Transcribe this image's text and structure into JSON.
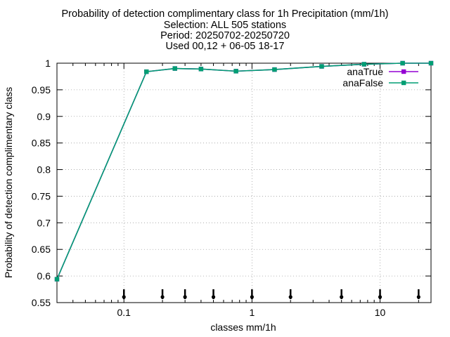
{
  "chart_data": {
    "type": "line",
    "title_lines": [
      "Probability of detection complimentary class  for 1h Precipitation (mm/1h)",
      "Selection: ALL    505 stations",
      "Period: 20250702-20250720",
      "Used 00,12 + 06-05 18-17"
    ],
    "xlabel": "classes mm/1h",
    "ylabel": "Probability of detection complimentary class",
    "xscale": "log",
    "xlim": [
      0.03,
      25
    ],
    "ylim": [
      0.55,
      1.0
    ],
    "yticks": [
      0.55,
      0.6,
      0.65,
      0.7,
      0.75,
      0.8,
      0.85,
      0.9,
      0.95,
      1.0
    ],
    "ytick_labels": [
      "0.55",
      "0.6",
      "0.65",
      "0.7",
      "0.75",
      "0.8",
      "0.85",
      "0.9",
      "0.95",
      "1"
    ],
    "xticks": [
      0.1,
      1,
      10
    ],
    "xtick_labels": [
      "0.1",
      "1",
      "10"
    ],
    "grid": true,
    "legend_position": "top-right",
    "series": [
      {
        "name": "anaTrue",
        "color": "#9400d3",
        "x": [
          0.03,
          0.15,
          0.25,
          0.4,
          0.75,
          1.5,
          3.5,
          7.5,
          15,
          25
        ],
        "y": [
          0.594,
          0.984,
          0.99,
          0.989,
          0.985,
          0.988,
          0.994,
          0.998,
          1.0,
          1.0
        ]
      },
      {
        "name": "anaFalse",
        "color": "#009e73",
        "x": [
          0.03,
          0.15,
          0.25,
          0.4,
          0.75,
          1.5,
          3.5,
          7.5,
          15,
          25
        ],
        "y": [
          0.594,
          0.984,
          0.99,
          0.989,
          0.985,
          0.988,
          0.994,
          0.998,
          1.0,
          1.0
        ]
      }
    ],
    "marker_positions": [
      0.1,
      0.2,
      0.3,
      0.5,
      1,
      2,
      5,
      10,
      20
    ]
  }
}
